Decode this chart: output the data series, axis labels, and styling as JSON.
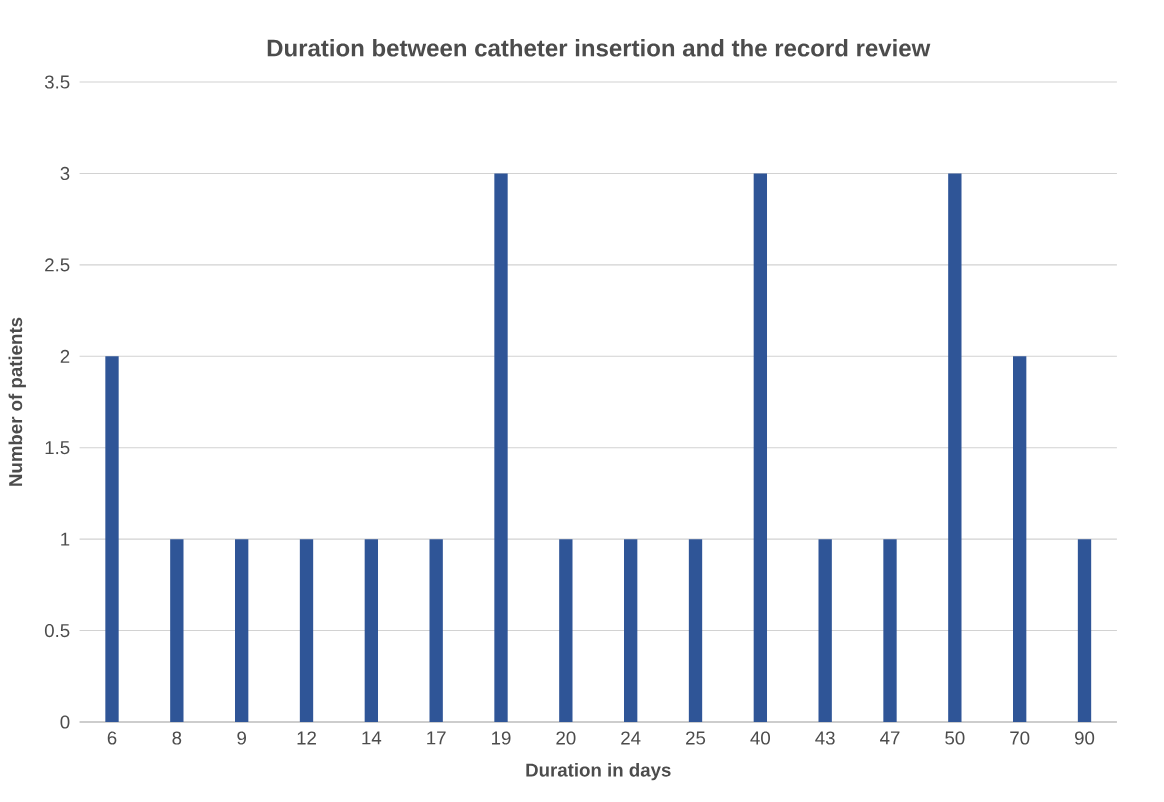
{
  "chart_data": {
    "type": "bar",
    "title": "Duration between catheter insertion and the record review",
    "xlabel": "Duration in days",
    "ylabel": "Number of patients",
    "categories": [
      "6",
      "8",
      "9",
      "12",
      "14",
      "17",
      "19",
      "20",
      "24",
      "25",
      "40",
      "43",
      "47",
      "50",
      "70",
      "90"
    ],
    "values": [
      2,
      1,
      1,
      1,
      1,
      1,
      3,
      1,
      1,
      1,
      3,
      1,
      1,
      3,
      2,
      1
    ],
    "color": "#2f5597",
    "ylim": [
      0,
      3.5
    ],
    "yticks": [
      0,
      0.5,
      1,
      1.5,
      2,
      2.5,
      3,
      3.5
    ],
    "grid": "y"
  }
}
